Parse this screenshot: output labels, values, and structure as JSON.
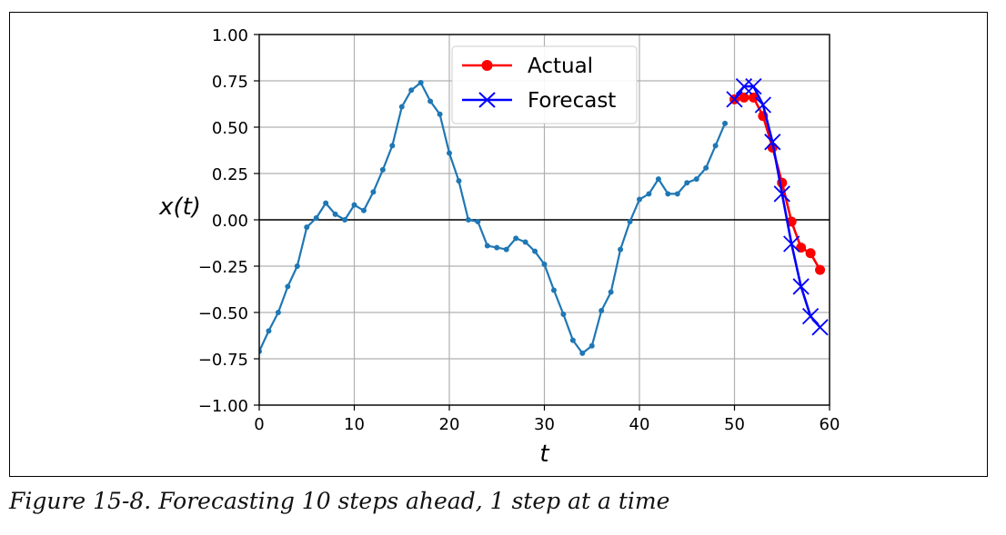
{
  "caption": "Figure 15-8. Forecasting 10 steps ahead, 1 step at a time",
  "chart_data": {
    "type": "line",
    "xlabel": "t",
    "ylabel": "x(t)",
    "xlim": [
      0,
      60
    ],
    "ylim": [
      -1.0,
      1.0
    ],
    "xticks": [
      0,
      10,
      20,
      30,
      40,
      50,
      60
    ],
    "yticks": [
      1.0,
      0.75,
      0.5,
      0.25,
      0.0,
      -0.25,
      -0.5,
      -0.75,
      -1.0
    ],
    "ytick_labels": [
      "1.00",
      "0.75",
      "0.50",
      "0.25",
      "0.00",
      "−0.25",
      "−0.50",
      "−0.75",
      "−1.00"
    ],
    "grid": true,
    "legend_position": "top-center",
    "series": [
      {
        "color": "#1f77b4",
        "marker": "dot",
        "x": [
          0,
          1,
          2,
          3,
          4,
          5,
          6,
          7,
          8,
          9,
          10,
          11,
          12,
          13,
          14,
          15,
          16,
          17,
          18,
          19,
          20,
          21,
          22,
          23,
          24,
          25,
          26,
          27,
          28,
          29,
          30,
          31,
          32,
          33,
          34,
          35,
          36,
          37,
          38,
          39,
          40,
          41,
          42,
          43,
          44,
          45,
          46,
          47,
          48,
          49
        ],
        "values": [
          -0.71,
          -0.6,
          -0.5,
          -0.36,
          -0.25,
          -0.04,
          0.01,
          0.09,
          0.03,
          0.0,
          0.08,
          0.05,
          0.15,
          0.27,
          0.4,
          0.61,
          0.7,
          0.74,
          0.64,
          0.57,
          0.36,
          0.21,
          0.0,
          -0.01,
          -0.14,
          -0.15,
          -0.16,
          -0.1,
          -0.12,
          -0.17,
          -0.24,
          -0.38,
          -0.51,
          -0.65,
          -0.72,
          -0.68,
          -0.49,
          -0.39,
          -0.16,
          -0.01,
          0.11,
          0.14,
          0.22,
          0.14,
          0.14,
          0.2,
          0.22,
          0.28,
          0.4,
          0.52
        ]
      },
      {
        "name": "Actual",
        "color": "#ff0000",
        "marker": "circle",
        "x": [
          50,
          51,
          52,
          53,
          54,
          55,
          56,
          57,
          58,
          59
        ],
        "values": [
          0.65,
          0.66,
          0.66,
          0.56,
          0.39,
          0.2,
          -0.01,
          -0.15,
          -0.18,
          -0.27
        ]
      },
      {
        "name": "Forecast",
        "color": "#0000ff",
        "marker": "x",
        "x": [
          50,
          51,
          52,
          53,
          54,
          55,
          56,
          57,
          58,
          59
        ],
        "values": [
          0.65,
          0.72,
          0.72,
          0.62,
          0.42,
          0.14,
          -0.13,
          -0.36,
          -0.52,
          -0.58
        ]
      }
    ]
  }
}
